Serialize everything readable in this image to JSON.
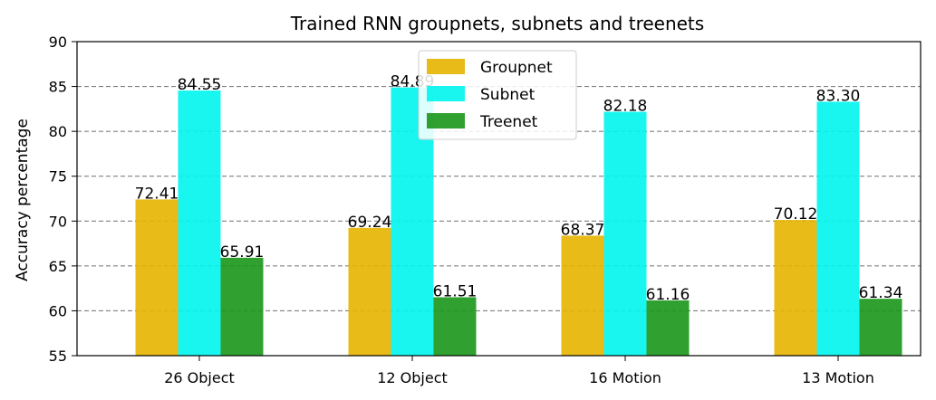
{
  "chart_data": {
    "type": "bar",
    "title": "Trained RNN groupnets, subnets and treenets",
    "xlabel": "",
    "ylabel": "Accuracy percentage",
    "ylim": [
      55,
      90
    ],
    "yticks": [
      55,
      60,
      65,
      70,
      75,
      80,
      85,
      90
    ],
    "grid": "horizontal-dashed",
    "legend_position": "upper-center",
    "categories": [
      "26 Object",
      "12 Object",
      "16 Motion",
      "13 Motion"
    ],
    "series": [
      {
        "name": "Groupnet",
        "color": "#e6b400",
        "values": [
          72.41,
          69.24,
          68.37,
          70.12
        ],
        "labels": [
          "72.41",
          "69.24",
          "68.37",
          "70.12"
        ]
      },
      {
        "name": "Subnet",
        "color": "#00f5ee",
        "values": [
          84.55,
          84.89,
          82.18,
          83.3
        ],
        "labels": [
          "84.55",
          "84.89",
          "82.18",
          "83.30"
        ]
      },
      {
        "name": "Treenet",
        "color": "#1a961a",
        "values": [
          65.91,
          61.51,
          61.16,
          61.34
        ],
        "labels": [
          "65.91",
          "61.51",
          "61.16",
          "61.34"
        ]
      }
    ]
  }
}
